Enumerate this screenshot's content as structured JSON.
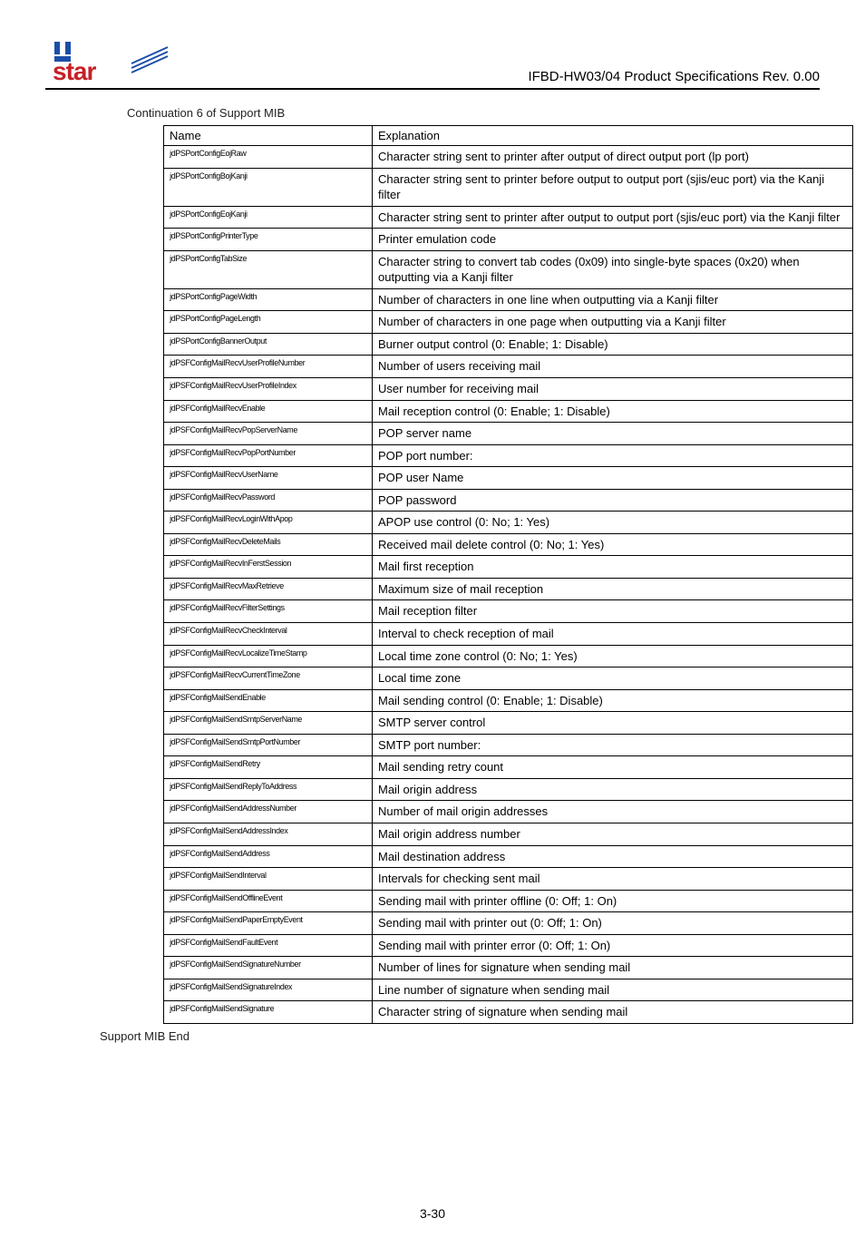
{
  "doc_title": "IFBD-HW03/04 Product Specifications Rev. 0.00",
  "section_caption": "Continuation 6 of Support MIB",
  "end_caption": "Support MIB End",
  "footer_page": "3-30",
  "logo_colors": {
    "blue": "#1b4ea8",
    "red": "#c62127"
  },
  "table": {
    "headers": {
      "name": "Name",
      "explanation": "Explanation"
    },
    "rows": [
      {
        "name": "jdPSPortConfigEojRaw",
        "exp": "Character string sent to printer after output of direct output port (lp port)"
      },
      {
        "name": "jdPSPortConfigBojKanji",
        "exp": "Character string sent to printer before output to output port (sjis/euc port) via the Kanji filter"
      },
      {
        "name": "jdPSPortConfigEojKanji",
        "exp": "Character string sent to printer after output to output port (sjis/euc port) via the Kanji filter"
      },
      {
        "name": "jdPSPortConfigPrinterType",
        "exp": "Printer emulation code"
      },
      {
        "name": "jdPSPortConfigTabSize",
        "exp": "Character string to convert tab codes (0x09) into single-byte spaces (0x20) when outputting via a Kanji filter"
      },
      {
        "name": "jdPSPortConfigPageWidth",
        "exp": "Number of characters in one line when outputting via a Kanji filter"
      },
      {
        "name": "jdPSPortConfigPageLength",
        "exp": "Number of characters in one page when outputting via a Kanji filter"
      },
      {
        "name": "jdPSPortConfigBannerOutput",
        "exp": "Burner output control (0: Enable; 1: Disable)"
      },
      {
        "name": "jdPSFConfigMailRecvUserProfileNumber",
        "exp": "Number of users receiving mail"
      },
      {
        "name": "jdPSFConfigMailRecvUserProfileIndex",
        "exp": "User number for receiving mail"
      },
      {
        "name": "jdPSFConfigMailRecvEnable",
        "exp": "Mail reception control (0: Enable; 1: Disable)"
      },
      {
        "name": "jdPSFConfigMailRecvPopServerName",
        "exp": "POP server name"
      },
      {
        "name": "jdPSFConfigMailRecvPopPortNumber",
        "exp": "POP port number:"
      },
      {
        "name": "jdPSFConfigMailRecvUserName",
        "exp": "POP user Name"
      },
      {
        "name": "jdPSFConfigMailRecvPassword",
        "exp": "POP password"
      },
      {
        "name": "jdPSFConfigMailRecvLoginWithApop",
        "exp": "APOP use control (0: No; 1: Yes)"
      },
      {
        "name": "jdPSFConfigMailRecvDeleteMails",
        "exp": "Received mail delete control (0: No; 1: Yes)"
      },
      {
        "name": "jdPSFConfigMailRecvInFerstSession",
        "exp": "Mail first reception"
      },
      {
        "name": "jdPSFConfigMailRecvMaxRetrieve",
        "exp": "Maximum size of mail reception"
      },
      {
        "name": "jdPSFConfigMailRecvFilterSettings",
        "exp": "Mail reception filter"
      },
      {
        "name": "jdPSFConfigMailRecvCheckInterval",
        "exp": "Interval to check reception of mail"
      },
      {
        "name": "jdPSFConfigMailRecvLocalizeTimeStamp",
        "exp": "Local time zone control (0: No; 1: Yes)"
      },
      {
        "name": "jdPSFConfigMailRecvCurrentTimeZone",
        "exp": "Local time zone"
      },
      {
        "name": "jdPSFConfigMailSendEnable",
        "exp": "Mail sending control (0: Enable; 1: Disable)"
      },
      {
        "name": "jdPSFConfigMailSendSmtpServerName",
        "exp": "SMTP server control"
      },
      {
        "name": "jdPSFConfigMailSendSmtpPortNumber",
        "exp": "SMTP port number:"
      },
      {
        "name": "jdPSFConfigMailSendRetry",
        "exp": "Mail sending retry count"
      },
      {
        "name": "jdPSFConfigMailSendReplyToAddress",
        "exp": "Mail origin address"
      },
      {
        "name": "jdPSFConfigMailSendAddressNumber",
        "exp": "Number of mail origin addresses"
      },
      {
        "name": "jdPSFConfigMailSendAddressIndex",
        "exp": "Mail origin address number"
      },
      {
        "name": "jdPSFConfigMailSendAddress",
        "exp": "Mail destination address"
      },
      {
        "name": "jdPSFConfigMailSendInterval",
        "exp": "Intervals for checking sent mail"
      },
      {
        "name": "jdPSFConfigMailSendOfflineEvent",
        "exp": "Sending mail with printer offline (0: Off; 1: On)"
      },
      {
        "name": "jdPSFConfigMailSendPaperEmptyEvent",
        "exp": "Sending mail with printer out (0: Off; 1: On)"
      },
      {
        "name": "jdPSFConfigMailSendFaultEvent",
        "exp": "Sending mail with printer error (0: Off; 1: On)"
      },
      {
        "name": "jdPSFConfigMailSendSignatureNumber",
        "exp": "Number of lines for signature when sending mail"
      },
      {
        "name": "jdPSFConfigMailSendSignatureIndex",
        "exp": "Line number of signature when sending mail"
      },
      {
        "name": "jdPSFConfigMailSendSignature",
        "exp": "Character string of signature when sending mail"
      }
    ]
  }
}
